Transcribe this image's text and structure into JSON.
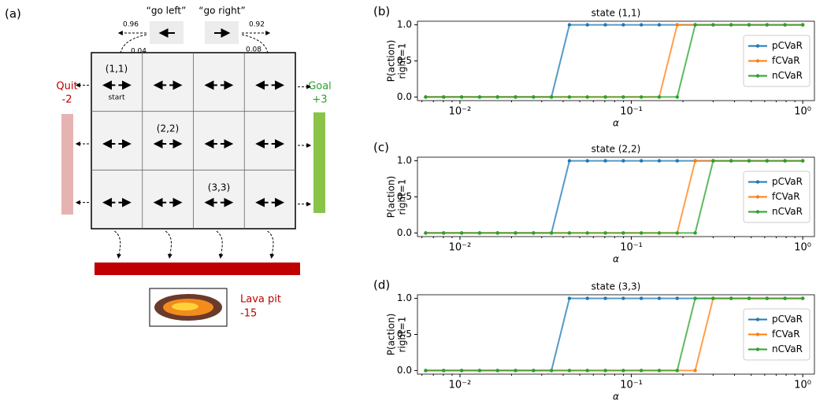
{
  "diagram": {
    "panel_label": "(a)",
    "go_left": "“go left”",
    "go_right": "“go right”",
    "left_probs": [
      "0.96",
      "0.04"
    ],
    "right_probs": [
      "0.92",
      "0.08"
    ],
    "quit": [
      "Quit",
      "-2"
    ],
    "goal": [
      "Goal",
      "+3"
    ],
    "cells": [
      {
        "label": "(1,1)",
        "note": "start"
      },
      {
        "label": "(2,2)"
      },
      {
        "label": "(3,3)"
      }
    ],
    "lava": [
      "Lava pit",
      "-15"
    ]
  },
  "chart_data": [
    {
      "type": "line",
      "panel_label": "(b)",
      "title": "state (1,1)",
      "ylabel": [
        "P(action)",
        "right=1"
      ],
      "xlabel": "α",
      "log_x": true,
      "legend": "center right",
      "x": [
        0.00631,
        0.00803,
        0.01023,
        0.01302,
        0.01657,
        0.0211,
        0.02686,
        0.03419,
        0.04352,
        0.0554,
        0.07053,
        0.08978,
        0.1143,
        0.1455,
        0.1852,
        0.2358,
        0.3001,
        0.3821,
        0.4864,
        0.6192,
        0.7882,
        1.0
      ],
      "xlim": [
        0.00565,
        1.17
      ],
      "xticks": [
        {
          "value": 0.01,
          "label": "10⁻²"
        },
        {
          "value": 0.1,
          "label": "10⁻¹"
        },
        {
          "value": 1,
          "label": "10⁰"
        }
      ],
      "ylim": [
        -0.05,
        1.05
      ],
      "yticks": [
        {
          "value": 0,
          "label": "0.0"
        },
        {
          "value": 0.5,
          "label": "0.5"
        },
        {
          "value": 1,
          "label": "1.0"
        }
      ],
      "series": [
        {
          "name": "pCVaR",
          "color": "#1f77b4",
          "values": [
            0,
            0,
            0,
            0,
            0,
            0,
            0,
            0,
            1,
            1,
            1,
            1,
            1,
            1,
            1,
            1,
            1,
            1,
            1,
            1,
            1,
            1
          ]
        },
        {
          "name": "fCVaR",
          "color": "#ff7f0e",
          "values": [
            0,
            0,
            0,
            0,
            0,
            0,
            0,
            0,
            0,
            0,
            0,
            0,
            0,
            0,
            1,
            1,
            1,
            1,
            1,
            1,
            1,
            1
          ]
        },
        {
          "name": "nCVaR",
          "color": "#2ca02c",
          "values": [
            0,
            0,
            0,
            0,
            0,
            0,
            0,
            0,
            0,
            0,
            0,
            0,
            0,
            0,
            0,
            1,
            1,
            1,
            1,
            1,
            1,
            1
          ]
        }
      ]
    },
    {
      "type": "line",
      "panel_label": "(c)",
      "title": "state (2,2)",
      "ylabel": [
        "P(action)",
        "right=1"
      ],
      "xlabel": "α",
      "log_x": true,
      "legend": "center right",
      "x": [
        0.00631,
        0.00803,
        0.01023,
        0.01302,
        0.01657,
        0.0211,
        0.02686,
        0.03419,
        0.04352,
        0.0554,
        0.07053,
        0.08978,
        0.1143,
        0.1455,
        0.1852,
        0.2358,
        0.3001,
        0.3821,
        0.4864,
        0.6192,
        0.7882,
        1.0
      ],
      "xlim": [
        0.00565,
        1.17
      ],
      "xticks": [
        {
          "value": 0.01,
          "label": "10⁻²"
        },
        {
          "value": 0.1,
          "label": "10⁻¹"
        },
        {
          "value": 1,
          "label": "10⁰"
        }
      ],
      "ylim": [
        -0.05,
        1.05
      ],
      "yticks": [
        {
          "value": 0,
          "label": "0.0"
        },
        {
          "value": 0.5,
          "label": "0.5"
        },
        {
          "value": 1,
          "label": "1.0"
        }
      ],
      "series": [
        {
          "name": "pCVaR",
          "color": "#1f77b4",
          "values": [
            0,
            0,
            0,
            0,
            0,
            0,
            0,
            0,
            1,
            1,
            1,
            1,
            1,
            1,
            1,
            1,
            1,
            1,
            1,
            1,
            1,
            1
          ]
        },
        {
          "name": "fCVaR",
          "color": "#ff7f0e",
          "values": [
            0,
            0,
            0,
            0,
            0,
            0,
            0,
            0,
            0,
            0,
            0,
            0,
            0,
            0,
            0,
            1,
            1,
            1,
            1,
            1,
            1,
            1
          ]
        },
        {
          "name": "nCVaR",
          "color": "#2ca02c",
          "values": [
            0,
            0,
            0,
            0,
            0,
            0,
            0,
            0,
            0,
            0,
            0,
            0,
            0,
            0,
            0,
            0,
            1,
            1,
            1,
            1,
            1,
            1
          ]
        }
      ]
    },
    {
      "type": "line",
      "panel_label": "(d)",
      "title": "state (3,3)",
      "ylabel": [
        "P(action)",
        "right=1"
      ],
      "xlabel": "α",
      "log_x": true,
      "legend": "center right",
      "x": [
        0.00631,
        0.00803,
        0.01023,
        0.01302,
        0.01657,
        0.0211,
        0.02686,
        0.03419,
        0.04352,
        0.0554,
        0.07053,
        0.08978,
        0.1143,
        0.1455,
        0.1852,
        0.2358,
        0.3001,
        0.3821,
        0.4864,
        0.6192,
        0.7882,
        1.0
      ],
      "xlim": [
        0.00565,
        1.17
      ],
      "xticks": [
        {
          "value": 0.01,
          "label": "10⁻²"
        },
        {
          "value": 0.1,
          "label": "10⁻¹"
        },
        {
          "value": 1,
          "label": "10⁰"
        }
      ],
      "ylim": [
        -0.05,
        1.05
      ],
      "yticks": [
        {
          "value": 0,
          "label": "0.0"
        },
        {
          "value": 0.5,
          "label": "0.5"
        },
        {
          "value": 1,
          "label": "1.0"
        }
      ],
      "series": [
        {
          "name": "pCVaR",
          "color": "#1f77b4",
          "values": [
            0,
            0,
            0,
            0,
            0,
            0,
            0,
            0,
            1,
            1,
            1,
            1,
            1,
            1,
            1,
            1,
            1,
            1,
            1,
            1,
            1,
            1
          ]
        },
        {
          "name": "fCVaR",
          "color": "#ff7f0e",
          "values": [
            0,
            0,
            0,
            0,
            0,
            0,
            0,
            0,
            0,
            0,
            0,
            0,
            0,
            0,
            0,
            0,
            1,
            1,
            1,
            1,
            1,
            1
          ]
        },
        {
          "name": "nCVaR",
          "color": "#2ca02c",
          "values": [
            0,
            0,
            0,
            0,
            0,
            0,
            0,
            0,
            0,
            0,
            0,
            0,
            0,
            0,
            0,
            1,
            1,
            1,
            1,
            1,
            1,
            1
          ]
        }
      ]
    }
  ]
}
